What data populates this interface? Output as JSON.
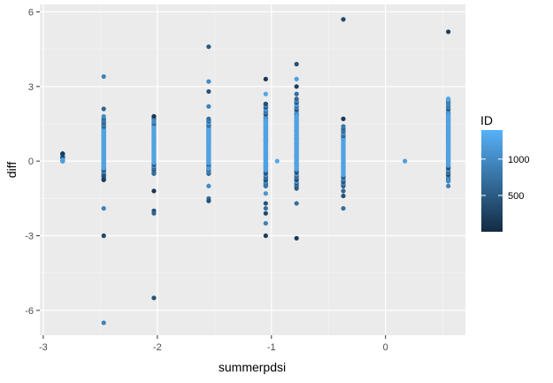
{
  "chart_data": {
    "type": "scatter",
    "title": "",
    "xlabel": "summerpdsi",
    "ylabel": "diff",
    "xlim": [
      -3.03,
      0.7
    ],
    "ylim": [
      -7.0,
      6.3
    ],
    "x_ticks": [
      -3,
      -2,
      -1,
      0
    ],
    "x_tick_labels": [
      "-3",
      "-2",
      "-1",
      "0"
    ],
    "y_ticks": [
      -6,
      -3,
      0,
      3,
      6
    ],
    "y_tick_labels": [
      "-6",
      "-3",
      "0",
      "3",
      "6"
    ],
    "grid": true,
    "legend": {
      "title": "ID",
      "position": "right",
      "type": "colorbar",
      "range": [
        1,
        1400
      ],
      "breaks": [
        500,
        1000
      ],
      "break_labels": [
        "500",
        "1000"
      ],
      "color_low": "#132B43",
      "color_high": "#56B1F7"
    },
    "columns": [
      {
        "x": -2.83,
        "min": 0.0,
        "max": 0.3,
        "id_low": 300,
        "id_high": 1300
      },
      {
        "x": -2.47,
        "min": -0.75,
        "max": 1.7,
        "id_low": 200,
        "id_high": 1350
      },
      {
        "x": -2.03,
        "min": -0.5,
        "max": 1.8,
        "id_low": 200,
        "id_high": 1350
      },
      {
        "x": -1.55,
        "min": -0.5,
        "max": 1.7,
        "id_low": 300,
        "id_high": 1350
      },
      {
        "x": -1.05,
        "min": -1.0,
        "max": 2.3,
        "id_low": 150,
        "id_high": 1350
      },
      {
        "x": -0.78,
        "min": -1.0,
        "max": 2.5,
        "id_low": 150,
        "id_high": 1350
      },
      {
        "x": -0.37,
        "min": -1.0,
        "max": 1.3,
        "id_low": 150,
        "id_high": 1350
      },
      {
        "x": 0.55,
        "min": -0.8,
        "max": 2.5,
        "id_low": 200,
        "id_high": 1350
      }
    ],
    "points": [
      {
        "x": -2.83,
        "y": 0.3,
        "id": 150
      },
      {
        "x": -2.83,
        "y": 0.15,
        "id": 300
      },
      {
        "x": -2.83,
        "y": 0.05,
        "id": 1300
      },
      {
        "x": -2.83,
        "y": 0.0,
        "id": 1200
      },
      {
        "x": -2.47,
        "y": 3.4,
        "id": 900
      },
      {
        "x": -2.47,
        "y": 2.1,
        "id": 600
      },
      {
        "x": -2.47,
        "y": 1.8,
        "id": 1000
      },
      {
        "x": -2.47,
        "y": 1.5,
        "id": 700
      },
      {
        "x": -2.47,
        "y": -0.6,
        "id": 400
      },
      {
        "x": -2.47,
        "y": -0.75,
        "id": 200
      },
      {
        "x": -2.47,
        "y": -1.9,
        "id": 900
      },
      {
        "x": -2.47,
        "y": -3.0,
        "id": 300
      },
      {
        "x": -2.47,
        "y": -6.5,
        "id": 900
      },
      {
        "x": -2.03,
        "y": 1.8,
        "id": 150
      },
      {
        "x": -2.03,
        "y": 1.6,
        "id": 1000
      },
      {
        "x": -2.03,
        "y": -0.5,
        "id": 700
      },
      {
        "x": -2.03,
        "y": -1.2,
        "id": 150
      },
      {
        "x": -2.03,
        "y": -2.0,
        "id": 400
      },
      {
        "x": -2.03,
        "y": -2.1,
        "id": 600
      },
      {
        "x": -2.03,
        "y": -5.5,
        "id": 400
      },
      {
        "x": -1.55,
        "y": 4.6,
        "id": 500
      },
      {
        "x": -1.55,
        "y": 3.2,
        "id": 1000
      },
      {
        "x": -1.55,
        "y": 2.8,
        "id": 400
      },
      {
        "x": -1.55,
        "y": 2.2,
        "id": 900
      },
      {
        "x": -1.55,
        "y": -0.3,
        "id": 1200
      },
      {
        "x": -1.55,
        "y": -1.0,
        "id": 1000
      },
      {
        "x": -1.55,
        "y": -1.5,
        "id": 700
      },
      {
        "x": -1.55,
        "y": -1.6,
        "id": 400
      },
      {
        "x": -1.05,
        "y": 3.3,
        "id": 150
      },
      {
        "x": -1.05,
        "y": 2.7,
        "id": 1300
      },
      {
        "x": -1.05,
        "y": 2.3,
        "id": 400
      },
      {
        "x": -1.05,
        "y": -1.0,
        "id": 800
      },
      {
        "x": -1.05,
        "y": -1.3,
        "id": 1100
      },
      {
        "x": -1.05,
        "y": -1.7,
        "id": 400
      },
      {
        "x": -1.05,
        "y": -1.9,
        "id": 700
      },
      {
        "x": -1.05,
        "y": -2.1,
        "id": 300
      },
      {
        "x": -1.05,
        "y": -2.5,
        "id": 900
      },
      {
        "x": -1.05,
        "y": -3.0,
        "id": 200
      },
      {
        "x": -0.95,
        "y": 0.0,
        "id": 1300
      },
      {
        "x": -0.78,
        "y": 3.9,
        "id": 400
      },
      {
        "x": -0.78,
        "y": 3.3,
        "id": 1200
      },
      {
        "x": -0.78,
        "y": 3.0,
        "id": 200
      },
      {
        "x": -0.78,
        "y": 2.7,
        "id": 700
      },
      {
        "x": -0.78,
        "y": -1.1,
        "id": 500
      },
      {
        "x": -0.78,
        "y": -1.7,
        "id": 700
      },
      {
        "x": -0.78,
        "y": -3.1,
        "id": 150
      },
      {
        "x": -0.37,
        "y": 5.7,
        "id": 300
      },
      {
        "x": -0.37,
        "y": 1.7,
        "id": 150
      },
      {
        "x": -0.37,
        "y": 1.4,
        "id": 800
      },
      {
        "x": -0.37,
        "y": -1.2,
        "id": 600
      },
      {
        "x": -0.37,
        "y": -1.4,
        "id": 400
      },
      {
        "x": -0.37,
        "y": -1.9,
        "id": 700
      },
      {
        "x": 0.17,
        "y": 0.0,
        "id": 1200
      },
      {
        "x": 0.55,
        "y": 5.2,
        "id": 200
      },
      {
        "x": 0.55,
        "y": 2.5,
        "id": 1300
      },
      {
        "x": 0.55,
        "y": 2.3,
        "id": 900
      },
      {
        "x": 0.55,
        "y": -0.8,
        "id": 1000
      },
      {
        "x": 0.55,
        "y": -1.0,
        "id": 900
      }
    ]
  }
}
